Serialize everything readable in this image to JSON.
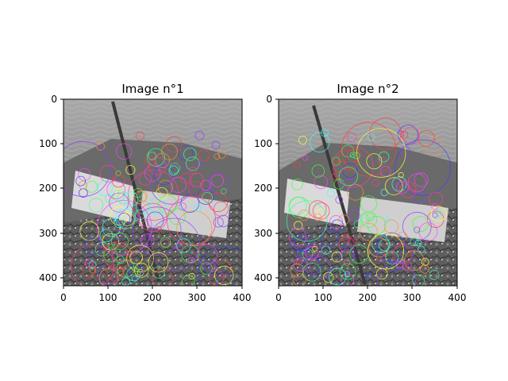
{
  "figure": {
    "background": "#ffffff",
    "panels": [
      {
        "title": "Image n°1",
        "x_ticks": [
          "0",
          "100",
          "200",
          "300",
          "400"
        ],
        "y_ticks": [
          "0",
          "100",
          "200",
          "300",
          "400"
        ],
        "image_description_colors": {
          "water": "#8a8a8a",
          "rocks": "#5a5a5a"
        },
        "keypoint_colors": [
          "#ff4040",
          "#40ff40",
          "#4040ff",
          "#ff40ff",
          "#40ffff",
          "#ffff40",
          "#ff9040",
          "#9040ff",
          "#40ff90",
          "#ff4090"
        ]
      },
      {
        "title": "Image n°2",
        "x_ticks": [
          "0",
          "100",
          "200",
          "300",
          "400"
        ],
        "y_ticks": [
          "0",
          "100",
          "200",
          "300",
          "400"
        ],
        "keypoint_colors": [
          "#ff4040",
          "#40ff40",
          "#4040ff",
          "#ff40ff",
          "#40ffff",
          "#ffff40",
          "#ff9040",
          "#9040ff",
          "#40ff90",
          "#ff4090"
        ]
      }
    ]
  }
}
